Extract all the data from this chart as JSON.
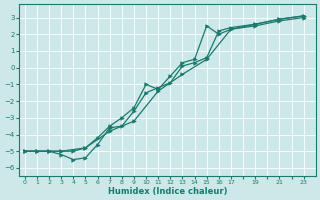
{
  "xlabel": "Humidex (Indice chaleur)",
  "bg_color": "#cce8e8",
  "grid_color": "#ffffff",
  "line_color": "#1a7a6e",
  "xlim": [
    -0.5,
    24.0
  ],
  "ylim": [
    -6.5,
    3.8
  ],
  "xticks": [
    0,
    1,
    2,
    3,
    4,
    5,
    6,
    7,
    8,
    9,
    10,
    11,
    12,
    13,
    14,
    15,
    16,
    17,
    19,
    21,
    23
  ],
  "yticks": [
    -6,
    -5,
    -4,
    -3,
    -2,
    -1,
    0,
    1,
    2,
    3
  ],
  "series1_x": [
    0,
    1,
    2,
    3,
    5,
    7,
    9,
    11,
    13,
    15,
    17,
    19,
    21,
    23
  ],
  "series1_y": [
    -5.0,
    -5.0,
    -5.0,
    -5.0,
    -4.8,
    -3.8,
    -3.2,
    -1.4,
    -0.4,
    0.5,
    2.3,
    2.5,
    2.8,
    3.0
  ],
  "series2_x": [
    0,
    1,
    2,
    3,
    4,
    5,
    6,
    7,
    8,
    9,
    10,
    11,
    12,
    13,
    14,
    15,
    16,
    17,
    19,
    21,
    23
  ],
  "series2_y": [
    -5.0,
    -5.0,
    -5.0,
    -5.2,
    -5.5,
    -5.4,
    -4.6,
    -3.6,
    -3.5,
    -2.6,
    -1.5,
    -1.2,
    -0.9,
    0.1,
    0.3,
    0.6,
    2.2,
    2.4,
    2.6,
    2.9,
    3.1
  ],
  "series3_x": [
    0,
    1,
    2,
    3,
    4,
    5,
    6,
    7,
    8,
    9,
    10,
    11,
    12,
    13,
    14,
    15,
    16,
    17,
    19,
    21,
    23
  ],
  "series3_y": [
    -5.0,
    -5.0,
    -5.0,
    -5.0,
    -5.0,
    -4.8,
    -4.2,
    -3.5,
    -3.0,
    -2.4,
    -1.0,
    -1.3,
    -0.5,
    0.3,
    0.5,
    2.5,
    2.0,
    2.3,
    2.6,
    2.9,
    3.1
  ]
}
